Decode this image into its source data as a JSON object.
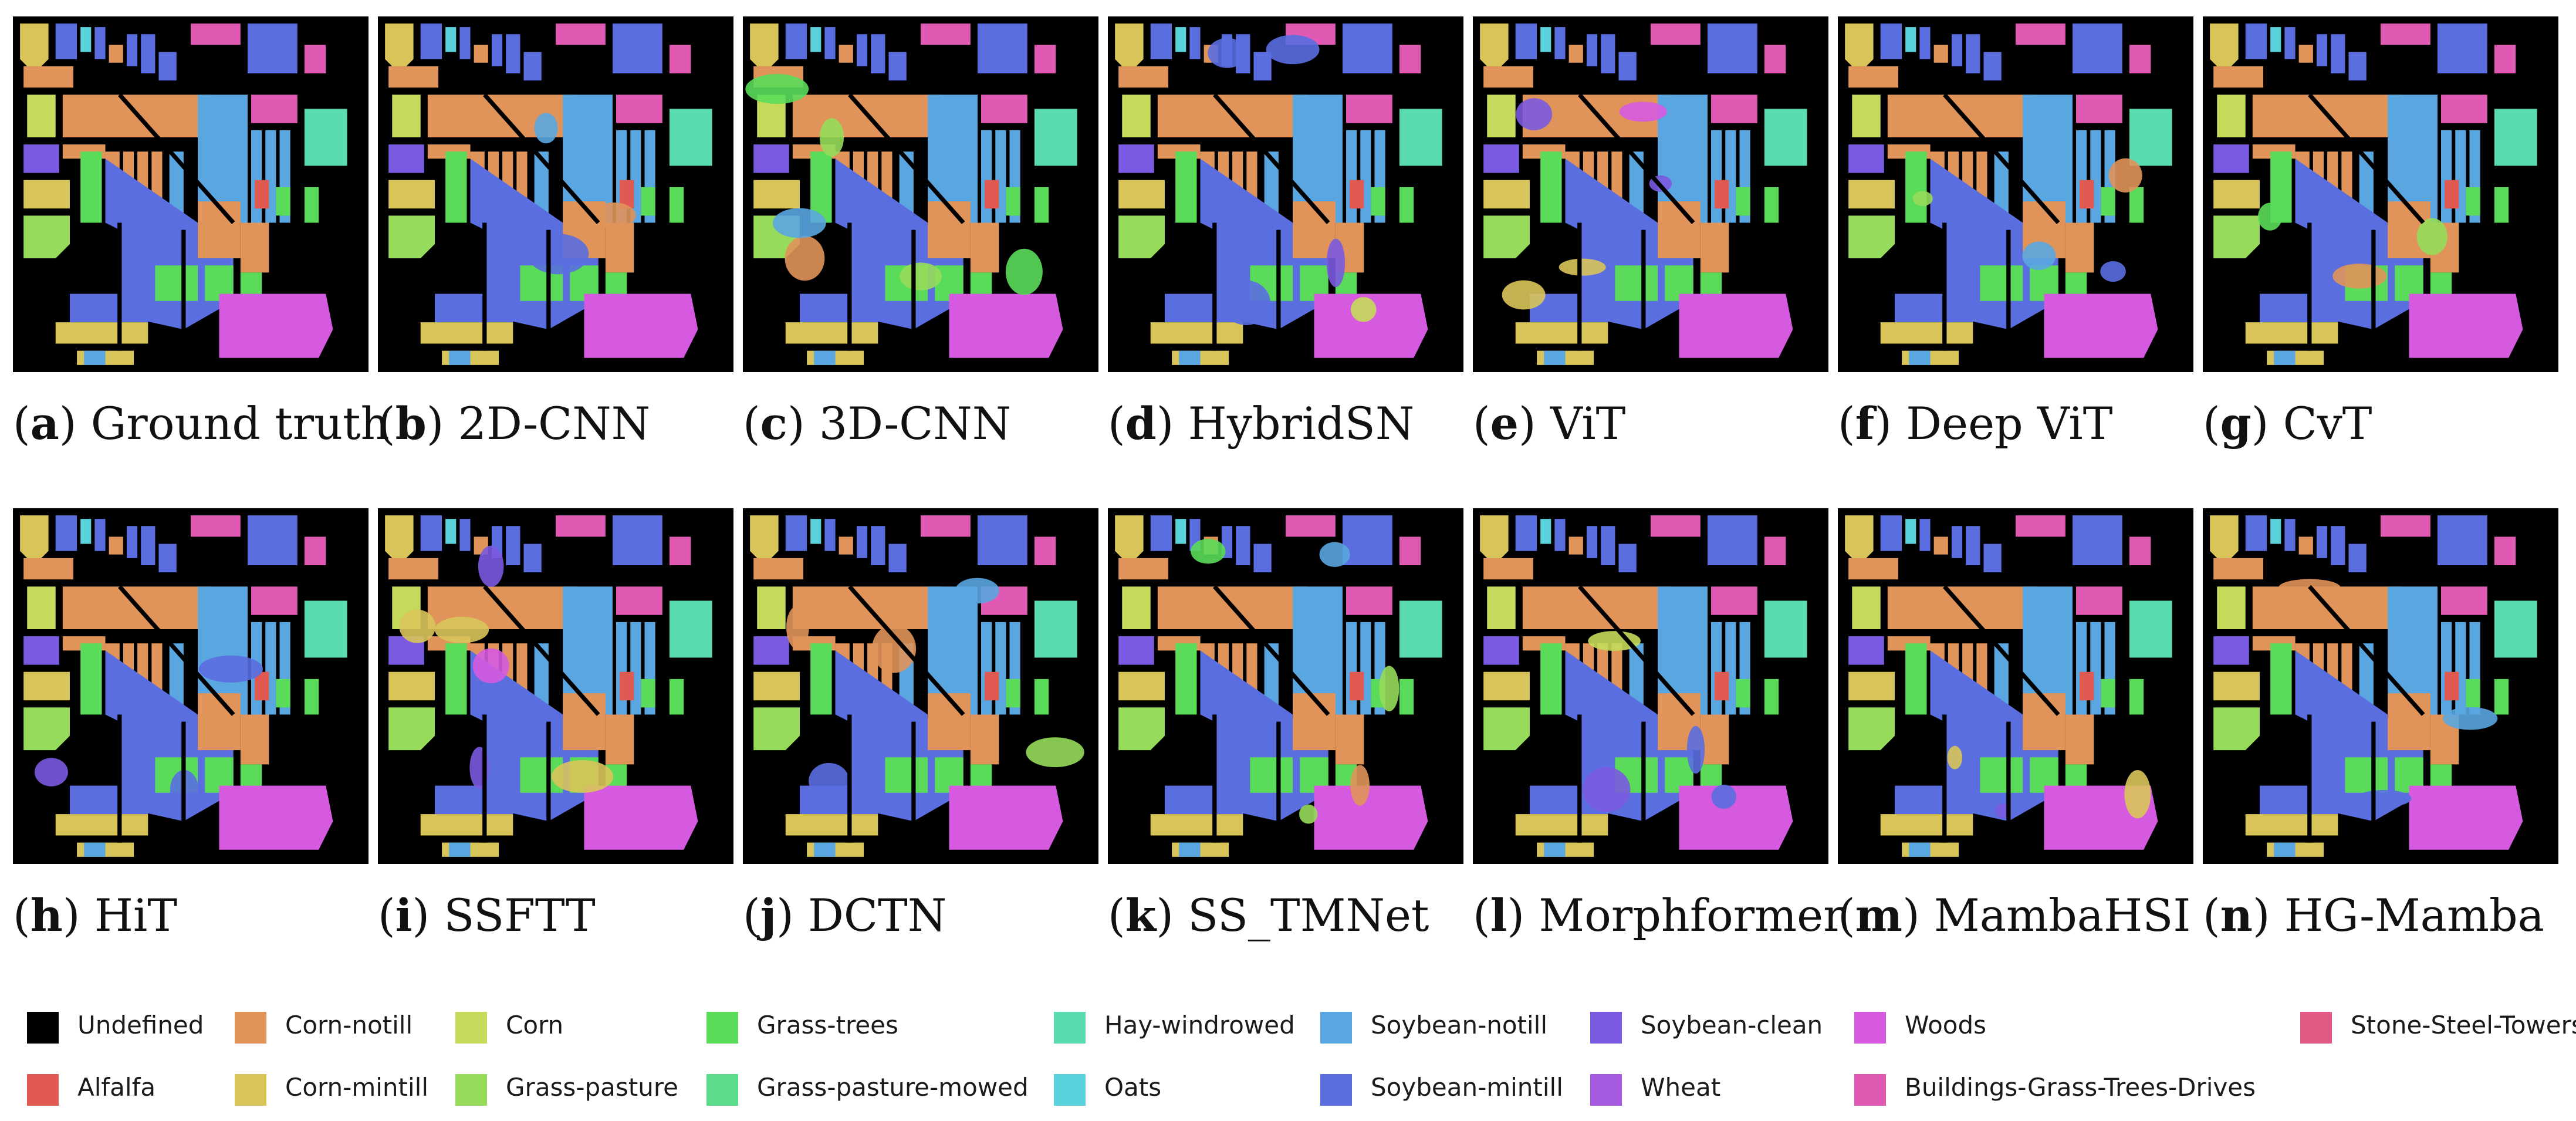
{
  "panels": [
    {
      "letter": "a",
      "name": "Ground truth"
    },
    {
      "letter": "b",
      "name": "2D-CNN"
    },
    {
      "letter": "c",
      "name": "3D-CNN"
    },
    {
      "letter": "d",
      "name": "HybridSN"
    },
    {
      "letter": "e",
      "name": "ViT"
    },
    {
      "letter": "f",
      "name": "Deep ViT"
    },
    {
      "letter": "g",
      "name": "CvT"
    },
    {
      "letter": "h",
      "name": "HiT"
    },
    {
      "letter": "i",
      "name": "SSFTT"
    },
    {
      "letter": "j",
      "name": "DCTN"
    },
    {
      "letter": "k",
      "name": "SS_TMNet"
    },
    {
      "letter": "l",
      "name": "Morphformer"
    },
    {
      "letter": "m",
      "name": "MambaHSI"
    },
    {
      "letter": "n",
      "name": "HG-Mamba"
    }
  ],
  "legend": [
    {
      "label": "Undefined",
      "color": "#000000"
    },
    {
      "label": "Alfalfa",
      "color": "#e05a52"
    },
    {
      "label": "Corn-notill",
      "color": "#e0945a"
    },
    {
      "label": "Corn-mintill",
      "color": "#d9c45a"
    },
    {
      "label": "Corn",
      "color": "#c5da5a"
    },
    {
      "label": "Grass-pasture",
      "color": "#96dc5a"
    },
    {
      "label": "Grass-trees",
      "color": "#5adc5a"
    },
    {
      "label": "Grass-pasture-mowed",
      "color": "#5adc8a"
    },
    {
      "label": "Hay-windrowed",
      "color": "#5adcb0"
    },
    {
      "label": "Oats",
      "color": "#5ad2dc"
    },
    {
      "label": "Soybean-notill",
      "color": "#5aa6e0"
    },
    {
      "label": "Soybean-mintill",
      "color": "#5a6ee0"
    },
    {
      "label": "Soybean-clean",
      "color": "#7a5ae0"
    },
    {
      "label": "Wheat",
      "color": "#a65ae0"
    },
    {
      "label": "Woods",
      "color": "#d65ae0"
    },
    {
      "label": "Buildings-Grass-Trees-Drives",
      "color": "#e05ab4"
    },
    {
      "label": "Stone-Steel-Towers",
      "color": "#e05a84"
    }
  ]
}
